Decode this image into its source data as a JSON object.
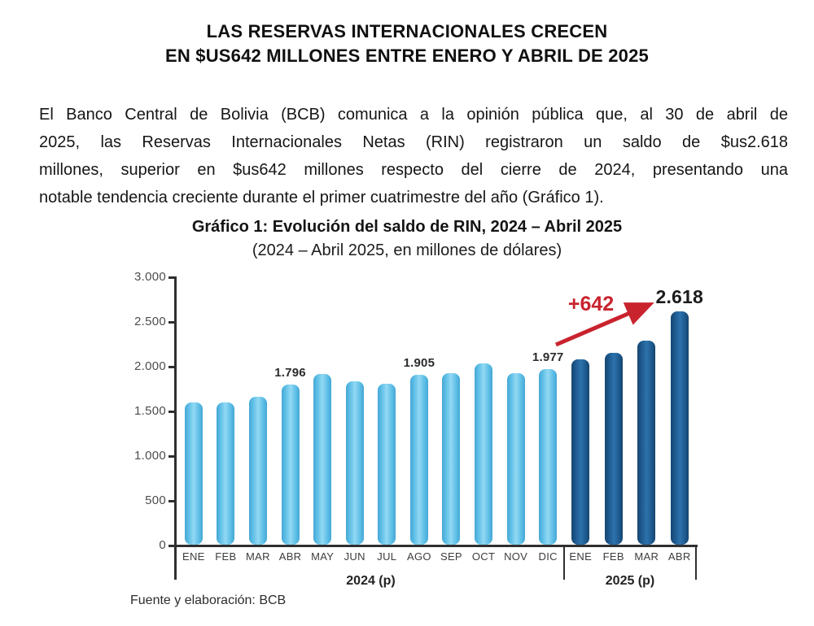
{
  "document": {
    "title_line1": "LAS RESERVAS INTERNACIONALES CRECEN",
    "title_line2": "EN $US642 MILLONES ENTRE ENERO Y ABRIL DE 2025",
    "paragraph_lines": [
      "El Banco Central de Bolivia (BCB) comunica a la opinión pública que, al 30 de abril de",
      "2025, las Reservas Internacionales Netas (RIN) registraron un saldo de $us2.618",
      "millones, superior en $us642 millones respecto del cierre de 2024, presentando una",
      "notable tendencia creciente durante el primer cuatrimestre del año (Gráfico 1)."
    ]
  },
  "chart_data": {
    "type": "bar",
    "title": "Gráfico 1: Evolución del saldo de RIN, 2024 – Abril 2025",
    "subtitle": "(2024 – Abril 2025, en millones de dólares)",
    "ylabel": "millones de dólares",
    "ylim": [
      0,
      3000
    ],
    "ytick_interval": 500,
    "ytick_labels": [
      "0",
      "500",
      "1.000",
      "1.500",
      "2.000",
      "2.500",
      "3.000"
    ],
    "grid": false,
    "colors": {
      "bar_2024": "#5FBFE7",
      "bar_2025": "#1E5B91",
      "annotation_red": "#C9232E"
    },
    "groups": [
      {
        "year_label": "2024 (p)",
        "palette": "light",
        "categories": [
          "ENE",
          "FEB",
          "MAR",
          "ABR",
          "MAY",
          "JUN",
          "JUL",
          "AGO",
          "SEP",
          "OCT",
          "NOV",
          "DIC"
        ],
        "values": [
          1600,
          1600,
          1665,
          1796,
          1915,
          1835,
          1805,
          1905,
          1930,
          2035,
          1930,
          1977
        ],
        "bar_labels": [
          null,
          null,
          null,
          "1.796",
          null,
          null,
          null,
          "1.905",
          null,
          null,
          null,
          "1.977"
        ],
        "emphasis_label_index": -1
      },
      {
        "year_label": "2025 (p)",
        "palette": "dark",
        "categories": [
          "ENE",
          "FEB",
          "MAR",
          "ABR"
        ],
        "values": [
          2080,
          2155,
          2290,
          2618
        ],
        "bar_labels": [
          null,
          null,
          null,
          "2.618"
        ],
        "emphasis_label_index": 3
      }
    ],
    "annotation": {
      "text": "+642"
    },
    "source": "Fuente y elaboración: BCB"
  }
}
